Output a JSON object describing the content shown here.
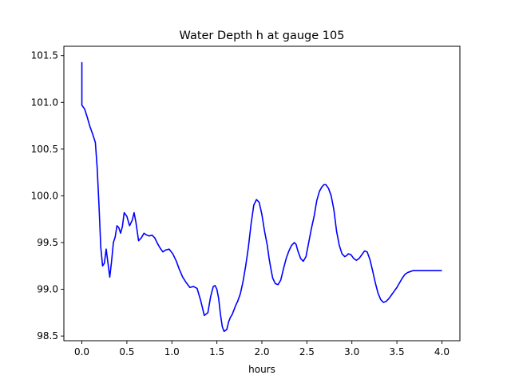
{
  "chart_data": {
    "type": "line",
    "title": "Water Depth h at gauge 105",
    "xlabel": "hours",
    "ylabel": "",
    "xlim": [
      -0.2,
      4.2
    ],
    "ylim": [
      98.45,
      101.6
    ],
    "xticks": [
      0.0,
      0.5,
      1.0,
      1.5,
      2.0,
      2.5,
      3.0,
      3.5,
      4.0
    ],
    "xtick_labels": [
      "0.0",
      "0.5",
      "1.0",
      "1.5",
      "2.0",
      "2.5",
      "3.0",
      "3.5",
      "4.0"
    ],
    "yticks": [
      98.5,
      99.0,
      99.5,
      100.0,
      100.5,
      101.0,
      101.5
    ],
    "ytick_labels": [
      "98.5",
      "99.0",
      "99.5",
      "100.0",
      "100.5",
      "101.0",
      "101.5"
    ],
    "grid": false,
    "series": [
      {
        "name": "",
        "color": "#0000ff",
        "x": [
          0.0,
          0.0,
          0.0,
          0.03,
          0.06,
          0.09,
          0.12,
          0.15,
          0.17,
          0.19,
          0.21,
          0.23,
          0.25,
          0.27,
          0.29,
          0.31,
          0.33,
          0.35,
          0.37,
          0.39,
          0.41,
          0.43,
          0.45,
          0.47,
          0.5,
          0.53,
          0.56,
          0.58,
          0.6,
          0.63,
          0.66,
          0.69,
          0.72,
          0.75,
          0.78,
          0.81,
          0.84,
          0.87,
          0.9,
          0.93,
          0.97,
          1.01,
          1.05,
          1.08,
          1.12,
          1.16,
          1.2,
          1.24,
          1.28,
          1.32,
          1.36,
          1.4,
          1.43,
          1.46,
          1.48,
          1.5,
          1.52,
          1.54,
          1.56,
          1.58,
          1.61,
          1.63,
          1.65,
          1.67,
          1.69,
          1.71,
          1.73,
          1.76,
          1.79,
          1.82,
          1.85,
          1.88,
          1.91,
          1.94,
          1.97,
          2.0,
          2.03,
          2.06,
          2.08,
          2.1,
          2.12,
          2.15,
          2.18,
          2.21,
          2.24,
          2.27,
          2.3,
          2.33,
          2.36,
          2.38,
          2.4,
          2.43,
          2.46,
          2.49,
          2.52,
          2.55,
          2.58,
          2.61,
          2.64,
          2.67,
          2.69,
          2.71,
          2.74,
          2.77,
          2.8,
          2.83,
          2.86,
          2.89,
          2.92,
          2.94,
          2.96,
          2.99,
          3.02,
          3.05,
          3.08,
          3.11,
          3.14,
          3.17,
          3.2,
          3.23,
          3.26,
          3.29,
          3.32,
          3.35,
          3.38,
          3.41,
          3.44,
          3.47,
          3.5,
          3.53,
          3.56,
          3.59,
          3.62,
          3.65,
          3.68,
          3.71,
          3.74,
          3.77,
          3.8,
          3.83,
          3.86,
          3.89,
          3.92,
          3.95,
          3.98,
          4.0
        ],
        "y": [
          101.43,
          100.99,
          100.97,
          100.93,
          100.84,
          100.74,
          100.66,
          100.57,
          100.3,
          99.9,
          99.45,
          99.25,
          99.28,
          99.43,
          99.28,
          99.13,
          99.3,
          99.5,
          99.56,
          99.68,
          99.66,
          99.6,
          99.67,
          99.82,
          99.78,
          99.68,
          99.74,
          99.82,
          99.72,
          99.52,
          99.55,
          99.6,
          99.58,
          99.57,
          99.58,
          99.55,
          99.49,
          99.44,
          99.4,
          99.42,
          99.43,
          99.38,
          99.3,
          99.22,
          99.13,
          99.07,
          99.02,
          99.03,
          99.01,
          98.88,
          98.72,
          98.75,
          98.92,
          99.03,
          99.04,
          99.0,
          98.9,
          98.73,
          98.6,
          98.55,
          98.57,
          98.65,
          98.7,
          98.73,
          98.78,
          98.83,
          98.87,
          98.95,
          99.08,
          99.25,
          99.45,
          99.7,
          99.9,
          99.96,
          99.93,
          99.8,
          99.62,
          99.47,
          99.33,
          99.22,
          99.12,
          99.06,
          99.05,
          99.1,
          99.22,
          99.33,
          99.41,
          99.47,
          99.5,
          99.48,
          99.41,
          99.33,
          99.3,
          99.35,
          99.5,
          99.65,
          99.78,
          99.95,
          100.05,
          100.1,
          100.12,
          100.12,
          100.08,
          100.0,
          99.85,
          99.62,
          99.47,
          99.38,
          99.35,
          99.36,
          99.38,
          99.37,
          99.33,
          99.31,
          99.33,
          99.37,
          99.41,
          99.4,
          99.32,
          99.2,
          99.07,
          98.96,
          98.89,
          98.86,
          98.87,
          98.9,
          98.94,
          98.98,
          99.02,
          99.07,
          99.12,
          99.16,
          99.18,
          99.19,
          99.2,
          99.2,
          99.2,
          99.2,
          99.2,
          99.2,
          99.2,
          99.2,
          99.2,
          99.2,
          99.2,
          99.2
        ]
      }
    ]
  }
}
